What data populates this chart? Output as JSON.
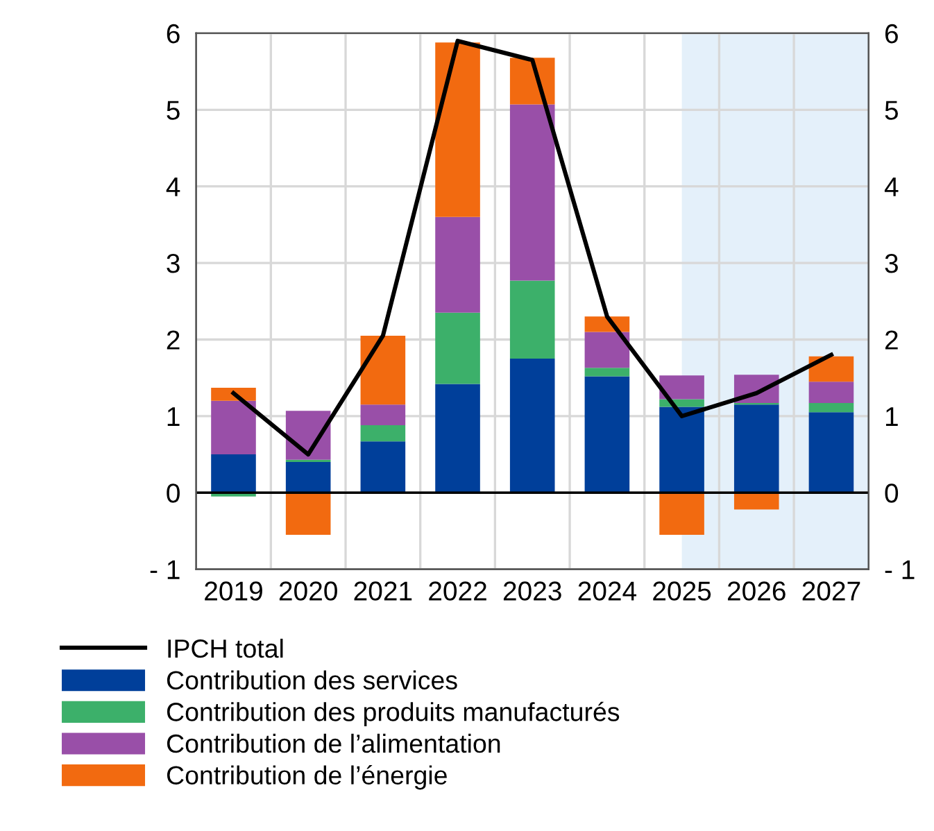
{
  "chart_data": {
    "type": "bar",
    "stacked": true,
    "categories": [
      "2019",
      "2020",
      "2021",
      "2022",
      "2023",
      "2024",
      "2025",
      "2026",
      "2027"
    ],
    "series": [
      {
        "name": "IPCH total",
        "type": "line",
        "color": "#000000",
        "values": [
          1.3,
          0.5,
          2.05,
          5.9,
          5.65,
          2.3,
          1.0,
          1.3,
          1.8
        ]
      },
      {
        "name": "Contribution des services",
        "color": "#003f9a",
        "values": [
          0.5,
          0.4,
          0.67,
          1.42,
          1.75,
          1.52,
          1.12,
          1.15,
          1.05
        ]
      },
      {
        "name": "Contribution des produits manufacturés",
        "color": "#3cb06a",
        "values": [
          -0.05,
          0.03,
          0.21,
          0.93,
          1.02,
          0.11,
          0.1,
          0.02,
          0.12
        ]
      },
      {
        "name": "Contribution de l’alimentation",
        "color": "#994fa8",
        "values": [
          0.7,
          0.64,
          0.27,
          1.25,
          2.3,
          0.47,
          0.31,
          0.37,
          0.28
        ]
      },
      {
        "name": "Contribution de l’énergie",
        "color": "#f26a10",
        "values": [
          0.17,
          -0.55,
          0.9,
          2.28,
          0.61,
          0.2,
          -0.55,
          -0.22,
          0.33
        ]
      }
    ],
    "ylim": [
      -1,
      6
    ],
    "yticks": [
      {
        "value": -1,
        "label": "- 1"
      },
      0,
      1,
      2,
      3,
      4,
      5,
      6
    ],
    "y2lim": [
      -1,
      6
    ],
    "y2ticks": [
      {
        "value": -1,
        "label": "- 1"
      },
      0,
      1,
      2,
      3,
      4,
      5,
      6
    ],
    "bands": [
      {
        "axis": "x",
        "from": "2025",
        "to": "2027",
        "color": "#e4f0fa"
      }
    ],
    "ref_lines": [
      {
        "axis": "y",
        "value": 0,
        "color": "#000000"
      }
    ],
    "grid": true,
    "legend": "bottom",
    "line_style": "solid",
    "marker": "none"
  }
}
